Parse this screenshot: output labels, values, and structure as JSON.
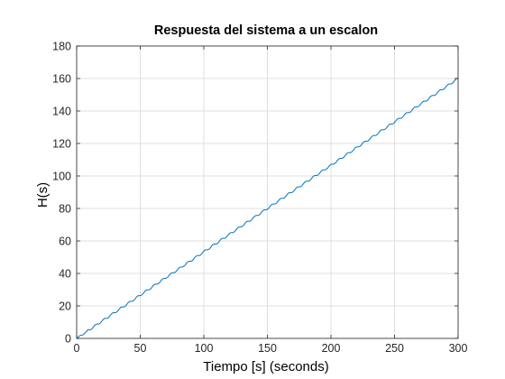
{
  "chart_data": {
    "type": "line",
    "title": "Respuesta del sistema a un escalon",
    "xlabel": "Tiempo [s] (seconds)",
    "ylabel": "H(s)",
    "xlim": [
      0,
      300
    ],
    "ylim": [
      0,
      180
    ],
    "xticks": [
      "0",
      "50",
      "100",
      "150",
      "200",
      "250",
      "300"
    ],
    "yticks": [
      "0",
      "20",
      "40",
      "60",
      "80",
      "100",
      "120",
      "140",
      "160",
      "180"
    ],
    "grid": true,
    "series": [
      {
        "color": "#0072BD",
        "x": [
          0,
          1,
          2,
          3,
          4,
          5,
          6,
          7,
          8,
          10,
          12,
          15,
          20,
          30,
          40,
          50,
          60,
          80,
          100,
          120,
          150,
          180,
          200,
          220,
          250,
          280,
          300
        ],
        "y": [
          0,
          0.6,
          1.4,
          1.9,
          2.0,
          2.2,
          2.9,
          3.7,
          4.3,
          5.3,
          6.4,
          8.0,
          10.7,
          16.0,
          21.3,
          26.6,
          32.0,
          42.6,
          53.3,
          64.0,
          80.0,
          96.0,
          106.6,
          117.3,
          133.3,
          149.3,
          160.0
        ],
        "oscillation_period": 6.6,
        "oscillation_amplitude": 0.55
      }
    ]
  }
}
